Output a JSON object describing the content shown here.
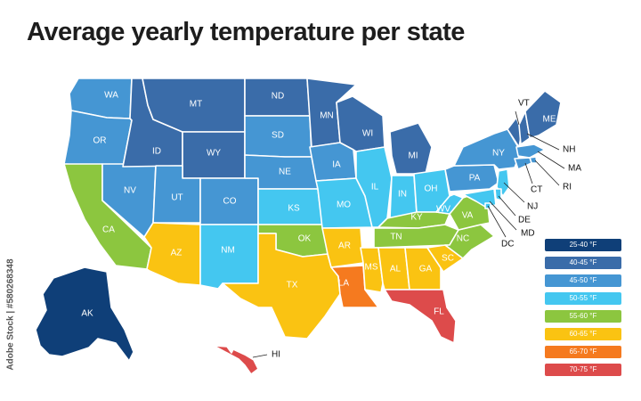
{
  "title": "Average yearly temperature per state",
  "credit": "Adobe Stock | #580268348",
  "colors": {
    "c1": "#0f3f78",
    "c2": "#3a6ca9",
    "c3": "#4596d3",
    "c4": "#44c7f0",
    "c5": "#8cc63f",
    "c6": "#fac312",
    "c7": "#f57a1f",
    "c8": "#dd4b4b"
  },
  "legend": [
    {
      "label": "25-40 °F",
      "color_key": "c1"
    },
    {
      "label": "40-45 °F",
      "color_key": "c2"
    },
    {
      "label": "45-50 °F",
      "color_key": "c3"
    },
    {
      "label": "50-55 °F",
      "color_key": "c4"
    },
    {
      "label": "55-60 °F",
      "color_key": "c5"
    },
    {
      "label": "60-65 °F",
      "color_key": "c6"
    },
    {
      "label": "65-70 °F",
      "color_key": "c7"
    },
    {
      "label": "70-75 °F",
      "color_key": "c8"
    }
  ],
  "states": [
    {
      "abbr": "WA",
      "color_key": "c3"
    },
    {
      "abbr": "OR",
      "color_key": "c3"
    },
    {
      "abbr": "CA",
      "color_key": "c5"
    },
    {
      "abbr": "NV",
      "color_key": "c3"
    },
    {
      "abbr": "ID",
      "color_key": "c2"
    },
    {
      "abbr": "MT",
      "color_key": "c2"
    },
    {
      "abbr": "WY",
      "color_key": "c2"
    },
    {
      "abbr": "UT",
      "color_key": "c3"
    },
    {
      "abbr": "CO",
      "color_key": "c3"
    },
    {
      "abbr": "AZ",
      "color_key": "c6"
    },
    {
      "abbr": "NM",
      "color_key": "c4"
    },
    {
      "abbr": "ND",
      "color_key": "c2"
    },
    {
      "abbr": "SD",
      "color_key": "c3"
    },
    {
      "abbr": "NE",
      "color_key": "c3"
    },
    {
      "abbr": "KS",
      "color_key": "c4"
    },
    {
      "abbr": "OK",
      "color_key": "c5"
    },
    {
      "abbr": "TX",
      "color_key": "c6"
    },
    {
      "abbr": "MN",
      "color_key": "c2"
    },
    {
      "abbr": "IA",
      "color_key": "c3"
    },
    {
      "abbr": "MO",
      "color_key": "c4"
    },
    {
      "abbr": "AR",
      "color_key": "c6"
    },
    {
      "abbr": "LA",
      "color_key": "c7"
    },
    {
      "abbr": "WI",
      "color_key": "c2"
    },
    {
      "abbr": "IL",
      "color_key": "c4"
    },
    {
      "abbr": "MI",
      "color_key": "c2"
    },
    {
      "abbr": "IN",
      "color_key": "c4"
    },
    {
      "abbr": "OH",
      "color_key": "c4"
    },
    {
      "abbr": "KY",
      "color_key": "c5"
    },
    {
      "abbr": "TN",
      "color_key": "c5"
    },
    {
      "abbr": "MS",
      "color_key": "c6"
    },
    {
      "abbr": "AL",
      "color_key": "c6"
    },
    {
      "abbr": "GA",
      "color_key": "c6"
    },
    {
      "abbr": "FL",
      "color_key": "c8"
    },
    {
      "abbr": "SC",
      "color_key": "c6"
    },
    {
      "abbr": "NC",
      "color_key": "c5"
    },
    {
      "abbr": "VA",
      "color_key": "c5"
    },
    {
      "abbr": "WV",
      "color_key": "c4"
    },
    {
      "abbr": "PA",
      "color_key": "c3"
    },
    {
      "abbr": "NY",
      "color_key": "c3"
    },
    {
      "abbr": "VT",
      "color_key": "c2"
    },
    {
      "abbr": "NH",
      "color_key": "c2"
    },
    {
      "abbr": "ME",
      "color_key": "c2"
    },
    {
      "abbr": "MA",
      "color_key": "c3"
    },
    {
      "abbr": "RI",
      "color_key": "c3"
    },
    {
      "abbr": "CT",
      "color_key": "c3"
    },
    {
      "abbr": "NJ",
      "color_key": "c4"
    },
    {
      "abbr": "DE",
      "color_key": "c4"
    },
    {
      "abbr": "MD",
      "color_key": "c4"
    },
    {
      "abbr": "DC",
      "color_key": "c4"
    },
    {
      "abbr": "AK",
      "color_key": "c1"
    },
    {
      "abbr": "HI",
      "color_key": "c8"
    }
  ]
}
